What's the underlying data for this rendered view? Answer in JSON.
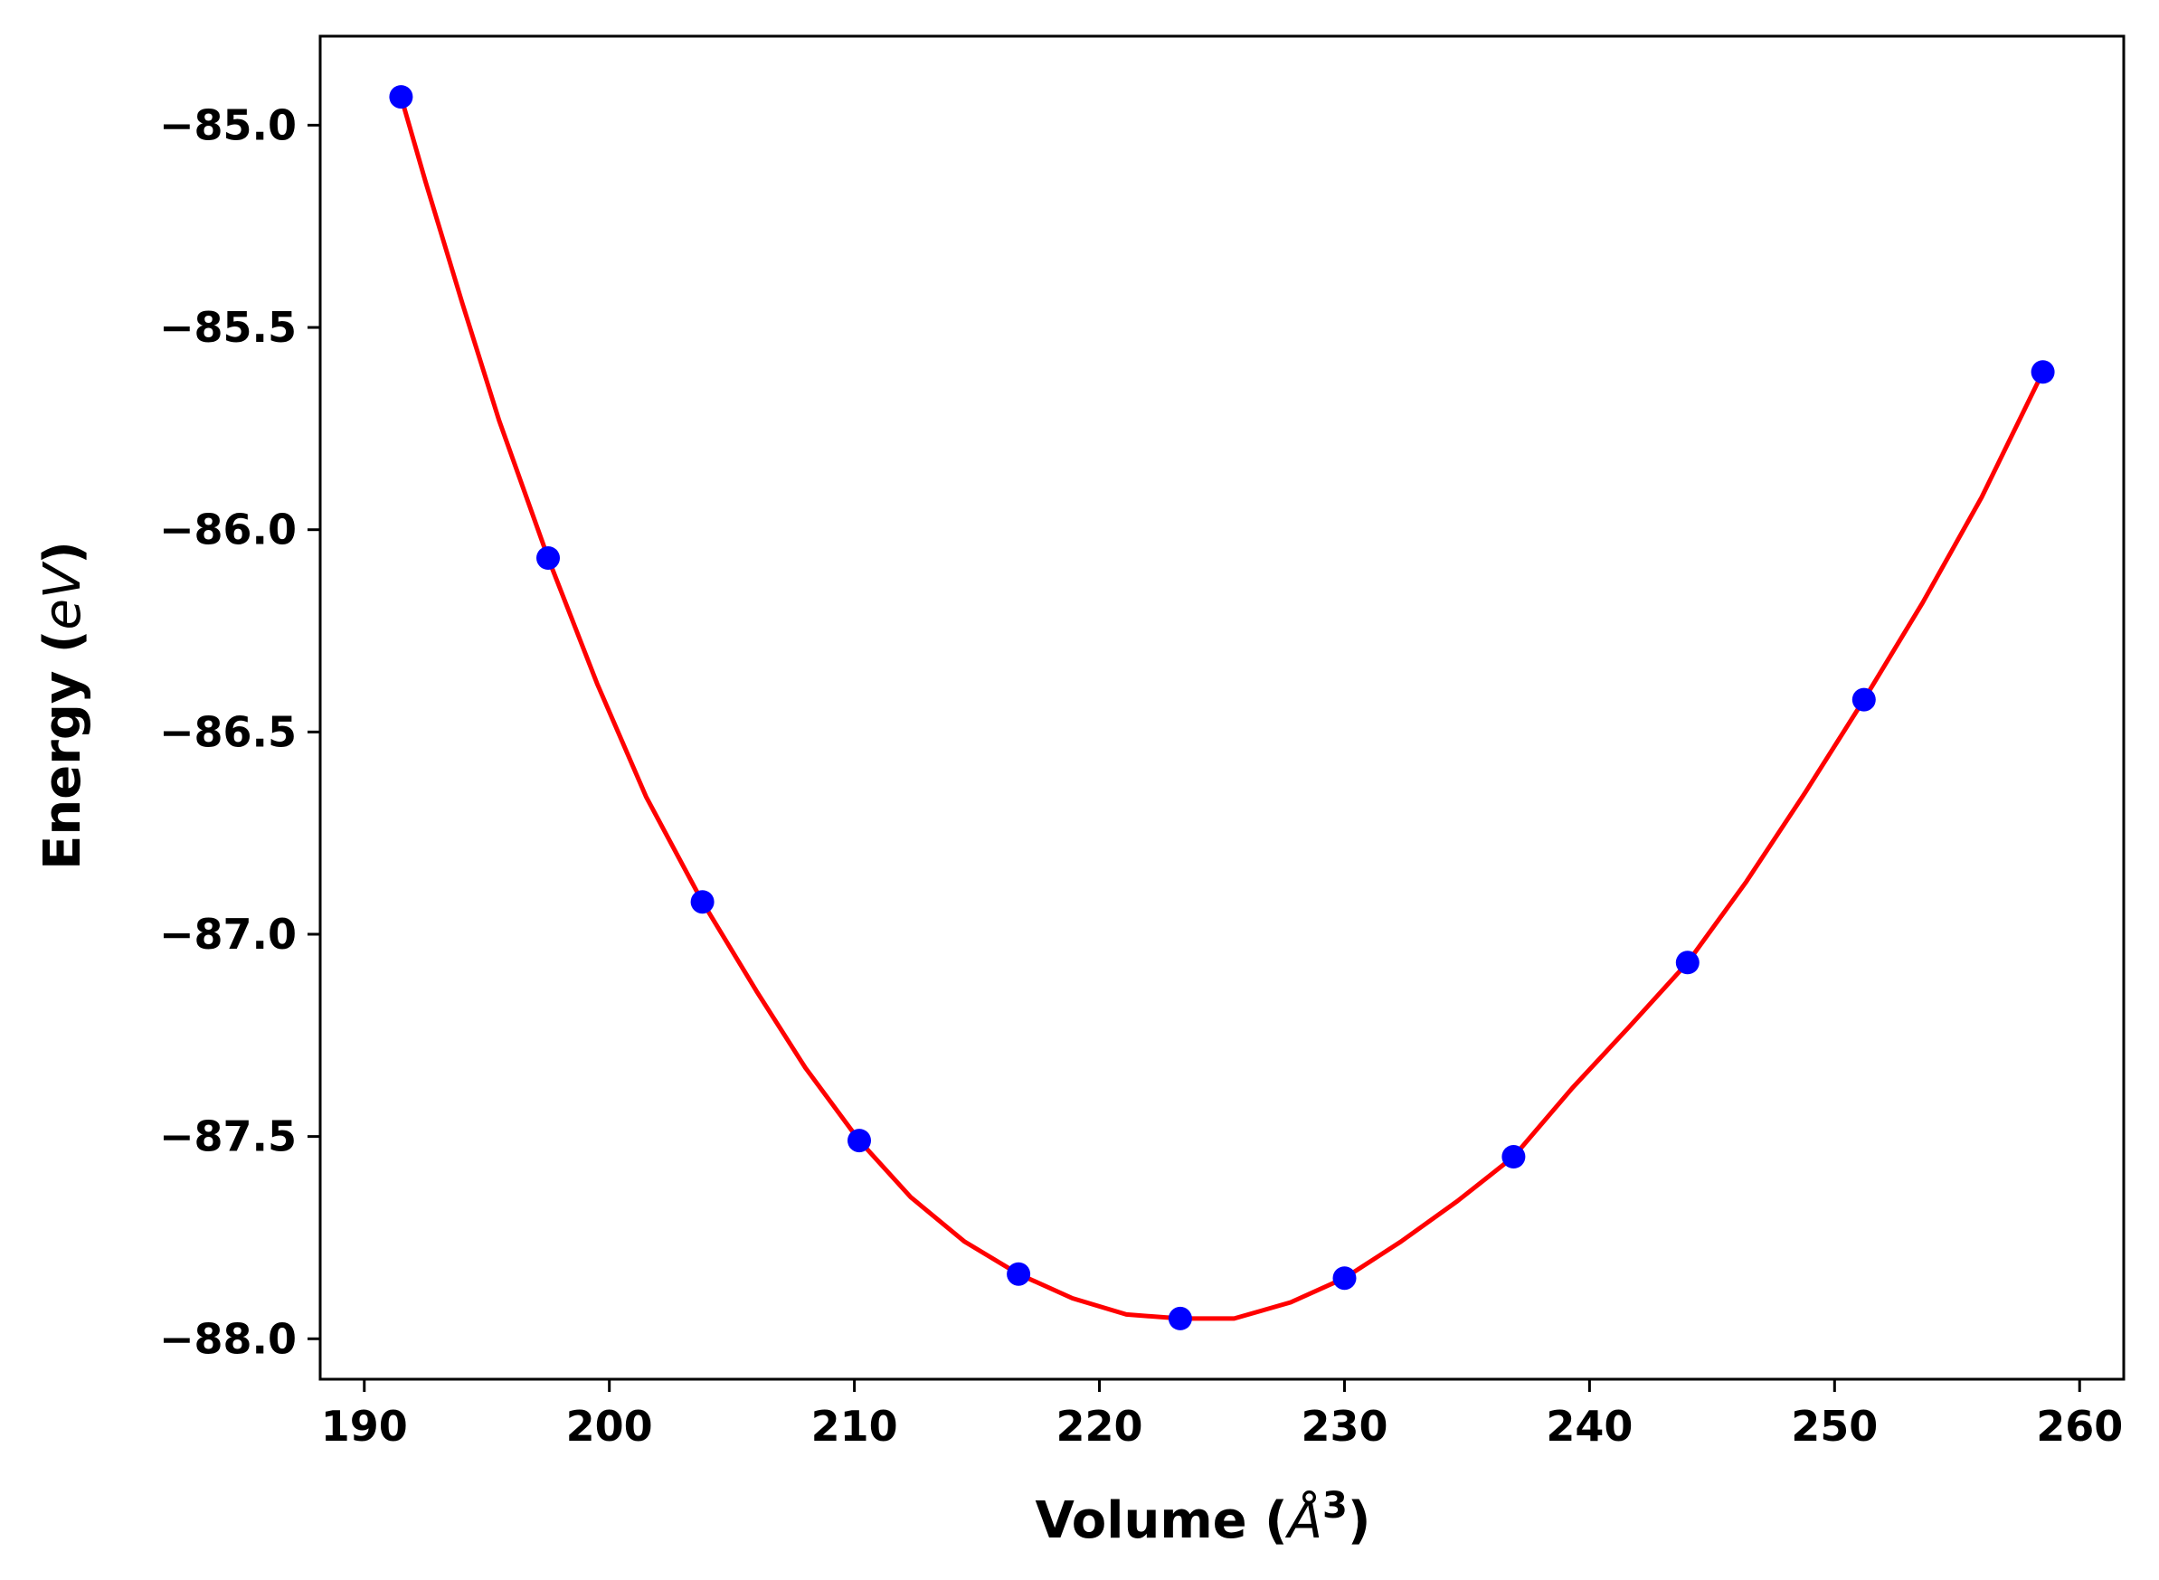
{
  "chart_data": {
    "type": "line",
    "xlabel": {
      "text": "Volume (",
      "symbol": "Å",
      "power": "3",
      "close": ")"
    },
    "ylabel": {
      "text": "Energy (",
      "symbol": "eV",
      "close": ")"
    },
    "xlim": [
      188.2,
      261.8
    ],
    "ylim": [
      -88.1,
      -84.78
    ],
    "xticks": [
      190,
      200,
      210,
      220,
      230,
      240,
      250,
      260
    ],
    "xtick_labels": [
      "190",
      "200",
      "210",
      "220",
      "230",
      "240",
      "250",
      "260"
    ],
    "yticks": [
      -85.0,
      -85.5,
      -86.0,
      -86.5,
      -87.0,
      -87.5,
      -88.0
    ],
    "ytick_labels": [
      "−85.0",
      "−85.5",
      "−86.0",
      "−86.5",
      "−87.0",
      "−87.5",
      "−88.0"
    ],
    "grid": false,
    "series": [
      {
        "kind": "markers",
        "color": "#0000ff",
        "x": [
          191.5,
          197.5,
          203.8,
          210.2,
          216.7,
          223.3,
          230.0,
          236.9,
          244.0,
          251.2,
          258.5
        ],
        "y": [
          -84.93,
          -86.07,
          -86.92,
          -87.51,
          -87.84,
          -87.95,
          -87.85,
          -87.55,
          -87.07,
          -86.42,
          -85.61
        ]
      },
      {
        "kind": "fit",
        "color": "#ff0000",
        "x": [
          191.5,
          192.5,
          194.0,
          195.5,
          197.5,
          199.5,
          201.5,
          203.8,
          206.0,
          208.0,
          210.2,
          212.3,
          214.5,
          216.7,
          218.9,
          221.1,
          223.3,
          225.5,
          227.8,
          230.0,
          232.3,
          234.6,
          236.9,
          239.3,
          241.6,
          244.0,
          246.4,
          248.8,
          251.2,
          253.6,
          256.0,
          258.5
        ],
        "y": [
          -84.93,
          -85.14,
          -85.44,
          -85.73,
          -86.07,
          -86.38,
          -86.66,
          -86.92,
          -87.14,
          -87.33,
          -87.51,
          -87.65,
          -87.76,
          -87.84,
          -87.9,
          -87.94,
          -87.95,
          -87.95,
          -87.91,
          -87.85,
          -87.76,
          -87.66,
          -87.55,
          -87.38,
          -87.23,
          -87.07,
          -86.87,
          -86.65,
          -86.42,
          -86.18,
          -85.92,
          -85.61
        ]
      }
    ]
  }
}
